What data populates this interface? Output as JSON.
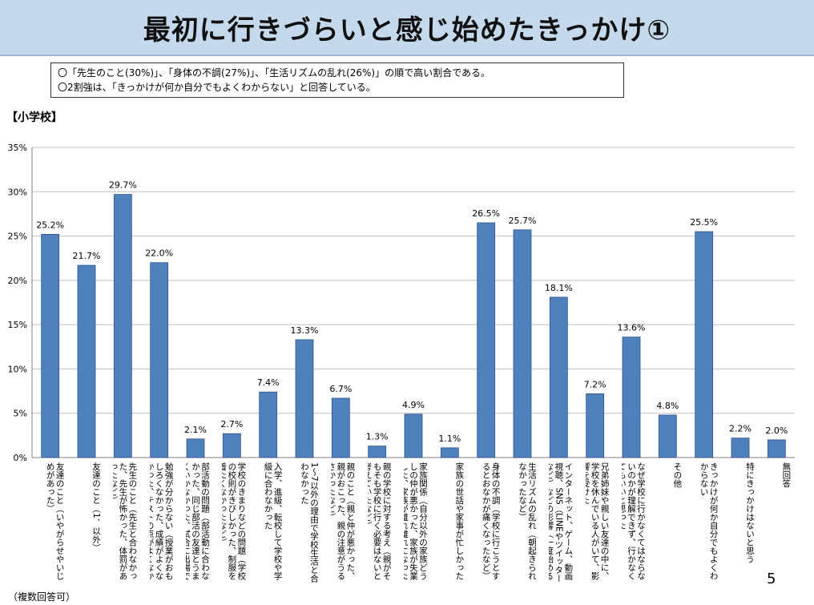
{
  "title": "最初に行きづらいと感じ始めたきっかけ①",
  "summary": [
    "〇「先生のこと(30%)」、「身体の不調(27%)」、「生活リズムの乱れ(26%)」の順で高い割合である。",
    "〇2割強は、「きっかけが何か自分でもよくわからない」と回答している。"
  ],
  "section_label": "【小学校】",
  "footnote": "（複数回答可）",
  "page_number": "5",
  "chart_data": {
    "type": "bar",
    "categories": [
      "友達のこと（いやがらせやいじめがあった）",
      "友達のこと（1．以外）",
      "先生のこと（先生と合わなかった、先生が怖かった、体罰があったなど）",
      "勉強が分からない（授業がおもしろくなかった、成績がよくなかった、テストの点がよくなかったなど）",
      "部活動の問題（部活動に合わなかった、同じ部活の友達とうまくいかなかった、試合に出場できなかった、部活動に行きたくなかったなど）",
      "学校のきまりなどの問題（学校の校則がきびしかった、制服を着たくなかったなど）",
      "入学、進級、転校して学校や学級に合わなかった",
      "1～7以外の理由で学校生活と合わなかった",
      "親のこと（親と仲が悪かった、親がおこった、親の注意がうるさかったなど）",
      "親の学校に対する考え（親がそもそも学校に行く必要はないと考えていたなど）",
      "家族関係（自分以外の家族どうしの仲が悪かった、家族が失業した、家族が離れ離れになったなど）",
      "家族の世話や家事が忙しかった",
      "身体の不調（学校に行こうとするとおなかが痛くなったなど）",
      "生活リズムの乱れ（朝起きられなかったなど）",
      "インターネット、ゲーム、動画視聴、SNS（LINEやツイッターなど）などの影響（一度始めると止められなかった、学校に行くより楽しかったなど）",
      "兄弟姉妹や親しい友達の中に、学校を休んでいる人がいて、影響を受けた",
      "なぜ学校に行かなくてはならないのかが理解できず、行かなくてもいいと思った",
      "その他",
      "きっかけが何か自分でもよくわからない",
      "特にきっかけはないと思う",
      "無回答"
    ],
    "values": [
      25.2,
      21.7,
      29.7,
      22.0,
      2.1,
      2.7,
      7.4,
      13.3,
      6.7,
      1.3,
      4.9,
      1.1,
      26.5,
      25.7,
      18.1,
      7.2,
      13.6,
      4.8,
      25.5,
      2.2,
      2.0
    ],
    "data_labels": [
      "25.2%",
      "21.7%",
      "29.7%",
      "22.0%",
      "2.1%",
      "2.7%",
      "7.4%",
      "13.3%",
      "6.7%",
      "1.3%",
      "4.9%",
      "1.1%",
      "26.5%",
      "25.7%",
      "18.1%",
      "7.2%",
      "13.6%",
      "4.8%",
      "25.5%",
      "2.2%",
      "2.0%"
    ],
    "y_ticks": [
      "0%",
      "5%",
      "10%",
      "15%",
      "20%",
      "25%",
      "30%",
      "35%"
    ],
    "ylim": [
      0,
      35
    ],
    "grid": true,
    "colors": {
      "bar": "#4f81bd",
      "bar_edge": "#2f528f",
      "grid": "#bfbfbf"
    }
  }
}
